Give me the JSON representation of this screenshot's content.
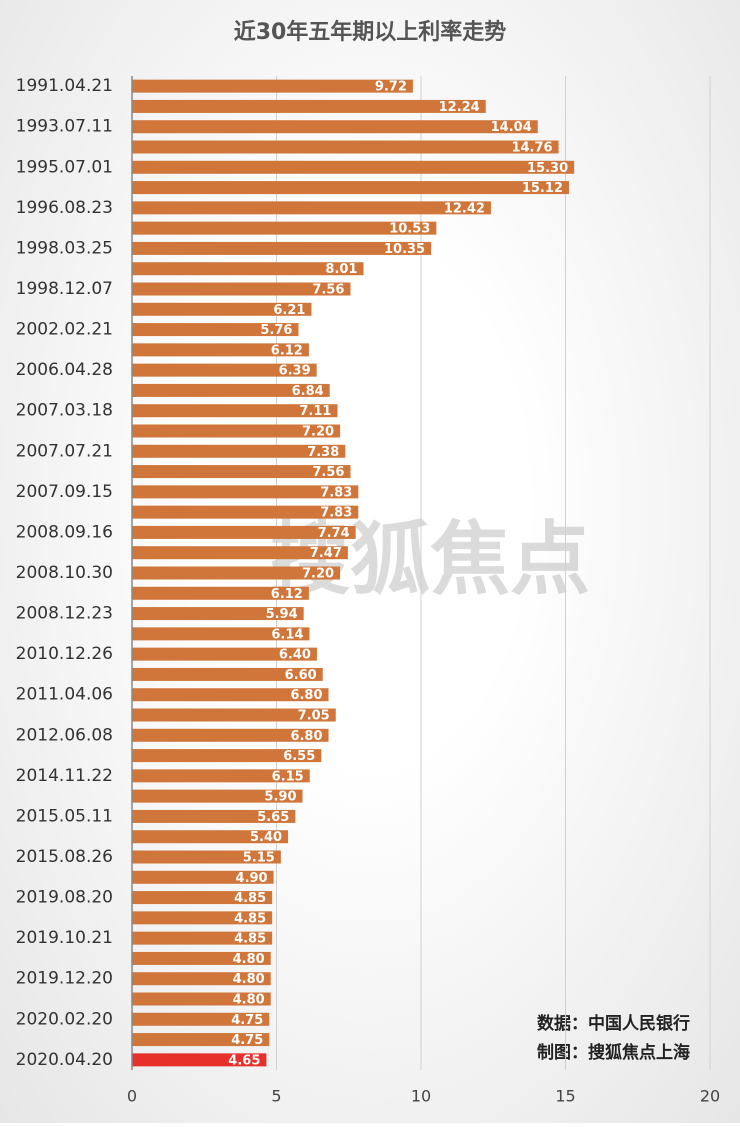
{
  "chart_data": {
    "type": "barh",
    "title": "近30年五年期以上利率走势",
    "categories": [
      "1991.04.21",
      null,
      "1993.07.11",
      null,
      "1995.07.01",
      null,
      "1996.08.23",
      null,
      "1998.03.25",
      null,
      "1998.12.07",
      null,
      "2002.02.21",
      null,
      "2006.04.28",
      null,
      "2007.03.18",
      null,
      "2007.07.21",
      null,
      "2007.09.15",
      null,
      "2008.09.16",
      null,
      "2008.10.30",
      null,
      "2008.12.23",
      null,
      "2010.12.26",
      null,
      "2011.04.06",
      null,
      "2012.06.08",
      null,
      "2014.11.22",
      null,
      "2015.05.11",
      null,
      "2015.08.26",
      null,
      "2019.08.20",
      null,
      "2019.10.21",
      null,
      "2019.12.20",
      null,
      "2020.02.20",
      null,
      "2020.04.20"
    ],
    "values": [
      9.72,
      12.24,
      14.04,
      14.76,
      15.3,
      15.12,
      12.42,
      10.53,
      10.35,
      8.01,
      7.56,
      6.21,
      5.76,
      6.12,
      6.39,
      6.84,
      7.11,
      7.2,
      7.38,
      7.56,
      7.83,
      7.83,
      7.74,
      7.47,
      7.2,
      6.12,
      5.94,
      6.14,
      6.4,
      6.6,
      6.8,
      7.05,
      6.8,
      6.55,
      6.15,
      5.9,
      5.65,
      5.4,
      5.15,
      4.9,
      4.85,
      4.85,
      4.85,
      4.8,
      4.8,
      4.8,
      4.75,
      4.75,
      4.65
    ],
    "value_labels": [
      "9.72",
      "12.24",
      "14.04",
      "14.76",
      "15.30",
      "15.12",
      "12.42",
      "10.53",
      "10.35",
      "8.01",
      "7.56",
      "6.21",
      "5.76",
      "6.12",
      "6.39",
      "6.84",
      "7.11",
      "7.20",
      "7.38",
      "7.56",
      "7.83",
      "7.83",
      "7.74",
      "7.47",
      "7.20",
      "6.12",
      "5.94",
      "6.14",
      "6.40",
      "6.60",
      "6.80",
      "7.05",
      "6.80",
      "6.55",
      "6.15",
      "5.90",
      "5.65",
      "5.40",
      "5.15",
      "4.90",
      "4.85",
      "4.85",
      "4.85",
      "4.80",
      "4.80",
      "4.80",
      "4.75",
      "4.75",
      "4.65"
    ],
    "colors": [
      "#d0763a",
      "#d0763a",
      "#d0763a",
      "#d0763a",
      "#d0763a",
      "#d0763a",
      "#d0763a",
      "#d0763a",
      "#d0763a",
      "#d0763a",
      "#d0763a",
      "#d0763a",
      "#d0763a",
      "#d0763a",
      "#d0763a",
      "#d0763a",
      "#d0763a",
      "#d0763a",
      "#d0763a",
      "#d0763a",
      "#d0763a",
      "#d0763a",
      "#d0763a",
      "#d0763a",
      "#d0763a",
      "#d0763a",
      "#d0763a",
      "#d0763a",
      "#d0763a",
      "#d0763a",
      "#d0763a",
      "#d0763a",
      "#d0763a",
      "#d0763a",
      "#d0763a",
      "#d0763a",
      "#d0763a",
      "#d0763a",
      "#d0763a",
      "#d0763a",
      "#d0763a",
      "#d0763a",
      "#d0763a",
      "#d0763a",
      "#d0763a",
      "#d0763a",
      "#d0763a",
      "#d0763a",
      "#e8302a"
    ],
    "xlim": [
      0,
      20
    ],
    "xticks": [
      0,
      5,
      10,
      15,
      20
    ],
    "grid": true,
    "annotations": [
      "数据：中国人民银行",
      "制图：搜狐焦点上海"
    ],
    "watermark": "搜狐焦点"
  }
}
